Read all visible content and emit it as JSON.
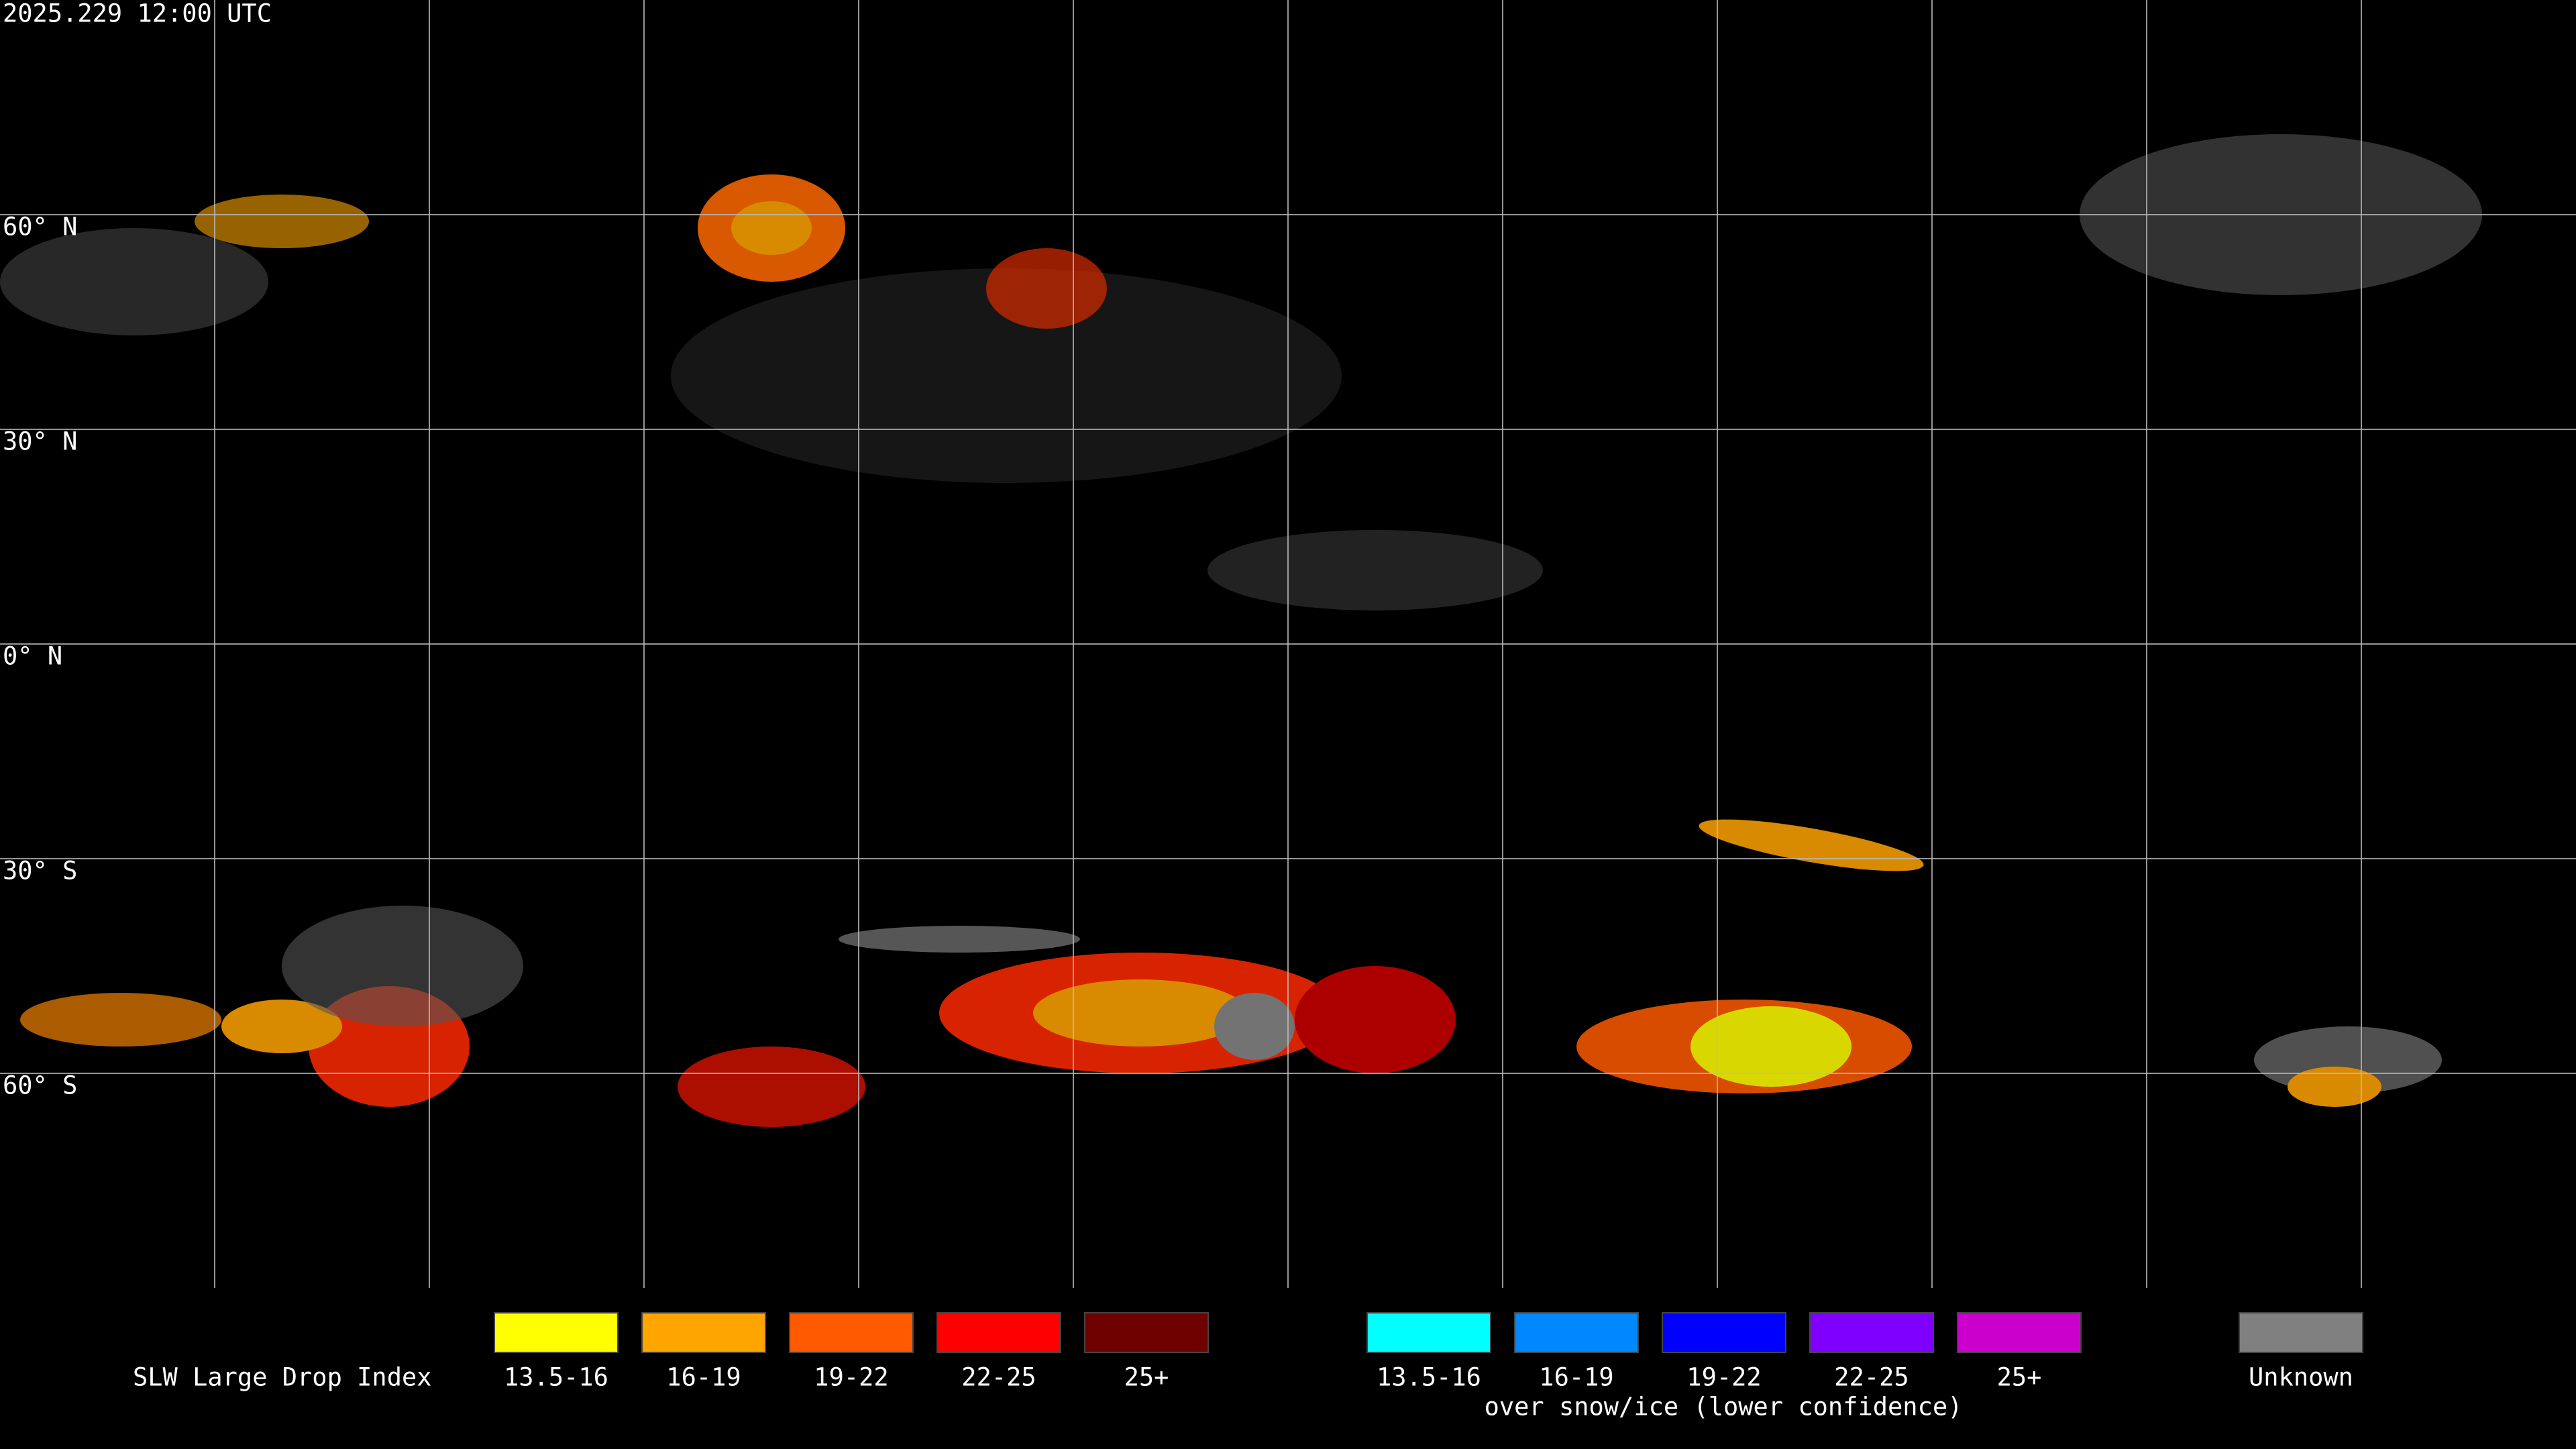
{
  "header": {
    "timestamp": "2025.229 12:00 UTC"
  },
  "latitude_labels": [
    "60° N",
    "30° N",
    "0° N",
    "30° S",
    "60° S"
  ],
  "legend": {
    "title": "SLW Large Drop Index",
    "items": [
      {
        "label": "13.5-16",
        "color": "#ffff00"
      },
      {
        "label": "16-19",
        "color": "#ffa500"
      },
      {
        "label": "19-22",
        "color": "#ff5a00"
      },
      {
        "label": "22-25",
        "color": "#ff0000"
      },
      {
        "label": "25+",
        "color": "#6e0000"
      }
    ],
    "snow_items": [
      {
        "label": "13.5-16",
        "color": "#00ffff"
      },
      {
        "label": "16-19",
        "color": "#0088ff"
      },
      {
        "label": "19-22",
        "color": "#0000ff"
      },
      {
        "label": "22-25",
        "color": "#8000ff"
      },
      {
        "label": "25+",
        "color": "#cc00cc"
      }
    ],
    "snow_note": "over snow/ice (lower confidence)",
    "unknown": {
      "label": "Unknown",
      "color": "#808080"
    }
  }
}
